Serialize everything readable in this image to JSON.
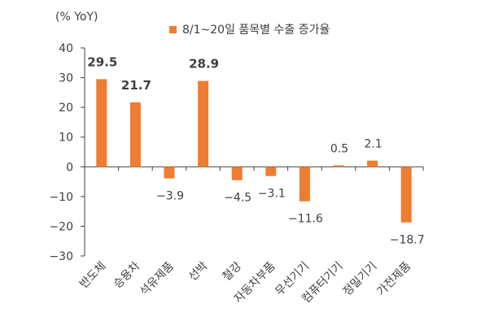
{
  "unit_label": "(% YoY)",
  "legend": {
    "label": "8/1~20일 품목별 수출 증가율",
    "color": "#ED7D31"
  },
  "chart_data": {
    "type": "bar",
    "title": "",
    "xlabel": "",
    "ylabel": "(% YoY)",
    "ylim": [
      -30,
      40
    ],
    "yticks": [
      40,
      30,
      20,
      10,
      0,
      -10,
      -20,
      -30
    ],
    "grid": false,
    "legend_position": "top",
    "categories": [
      "반도체",
      "승용차",
      "석유제품",
      "선박",
      "철강",
      "자동차부품",
      "무선기기",
      "컴퓨터기기",
      "정밀기기",
      "가전제품"
    ],
    "series": [
      {
        "name": "8/1~20일 품목별 수출 증가율",
        "color": "#ED7D31",
        "values": [
          29.5,
          21.7,
          -3.9,
          28.9,
          -4.5,
          -3.1,
          -11.6,
          0.5,
          2.1,
          -18.7
        ]
      }
    ],
    "data_labels": [
      "29.5",
      "21.7",
      "-3.9",
      "28.9",
      "-4.5",
      "-3.1",
      "-11.6",
      "0.5",
      "2.1",
      "-18.7"
    ],
    "bold_labels": [
      true,
      true,
      false,
      true,
      false,
      false,
      false,
      false,
      false,
      false
    ]
  }
}
